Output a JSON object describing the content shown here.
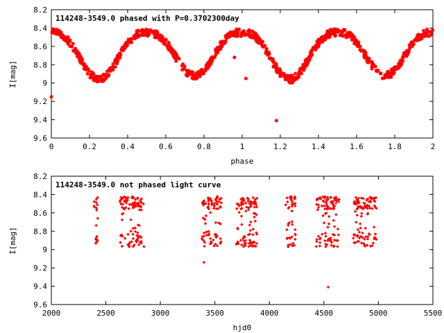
{
  "chart_data": [
    {
      "type": "scatter",
      "title": "114248-3549.0 phased with P=0.3702300day",
      "xlabel": "phase",
      "ylabel": "I[mag]",
      "xlim": [
        0,
        2
      ],
      "ylim": [
        9.6,
        8.2
      ],
      "y_inverted": true,
      "xticks": [
        "0",
        "0.2",
        "0.4",
        "0.6",
        "0.8",
        "1",
        "1.2",
        "1.4",
        "1.6",
        "1.8",
        "2"
      ],
      "yticks": [
        "8.2",
        "8.4",
        "8.6",
        "8.8",
        "9",
        "9.2",
        "9.4",
        "9.6"
      ],
      "grid": false,
      "marker_color": "#ff0000",
      "marker": "asterisk",
      "period_days": 0.37023,
      "curve_model": {
        "mean_mag": 8.69,
        "amplitude_mag": 0.23,
        "min_phases": [
          0.25,
          0.75,
          1.25,
          1.75
        ],
        "max_phases": [
          0.0,
          0.5,
          1.0,
          1.5,
          2.0
        ],
        "faint_min_depth_mag": 8.96,
        "shallow_min_depth_mag": 8.92,
        "max_mag": 8.45
      },
      "outliers": [
        {
          "x": 0.0,
          "y": 9.15
        },
        {
          "x": 0.96,
          "y": 8.72
        },
        {
          "x": 1.02,
          "y": 8.95
        },
        {
          "x": 1.18,
          "y": 9.41
        }
      ]
    },
    {
      "type": "scatter",
      "title": "114248-3549.0 not phased light curve",
      "xlabel": "hjd0",
      "ylabel": "I[mag]",
      "xlim": [
        2000,
        5500
      ],
      "ylim": [
        9.6,
        8.2
      ],
      "y_inverted": true,
      "xticks": [
        "2000",
        "2500",
        "3000",
        "3500",
        "4000",
        "4500",
        "5000",
        "5500"
      ],
      "yticks": [
        "8.2",
        "8.4",
        "8.6",
        "8.8",
        "9",
        "9.2",
        "9.4",
        "9.6"
      ],
      "grid": false,
      "marker_color": "#ff0000",
      "marker": "diamond",
      "observing_seasons": [
        {
          "start": 2390,
          "end": 2430
        },
        {
          "start": 2630,
          "end": 2850
        },
        {
          "start": 3380,
          "end": 3560
        },
        {
          "start": 3690,
          "end": 3890
        },
        {
          "start": 4150,
          "end": 4240
        },
        {
          "start": 4430,
          "end": 4640
        },
        {
          "start": 4770,
          "end": 4990
        }
      ],
      "mag_range": [
        8.42,
        8.97
      ],
      "outliers": [
        {
          "x": 3400,
          "y": 9.14
        },
        {
          "x": 4540,
          "y": 9.41
        }
      ]
    }
  ]
}
